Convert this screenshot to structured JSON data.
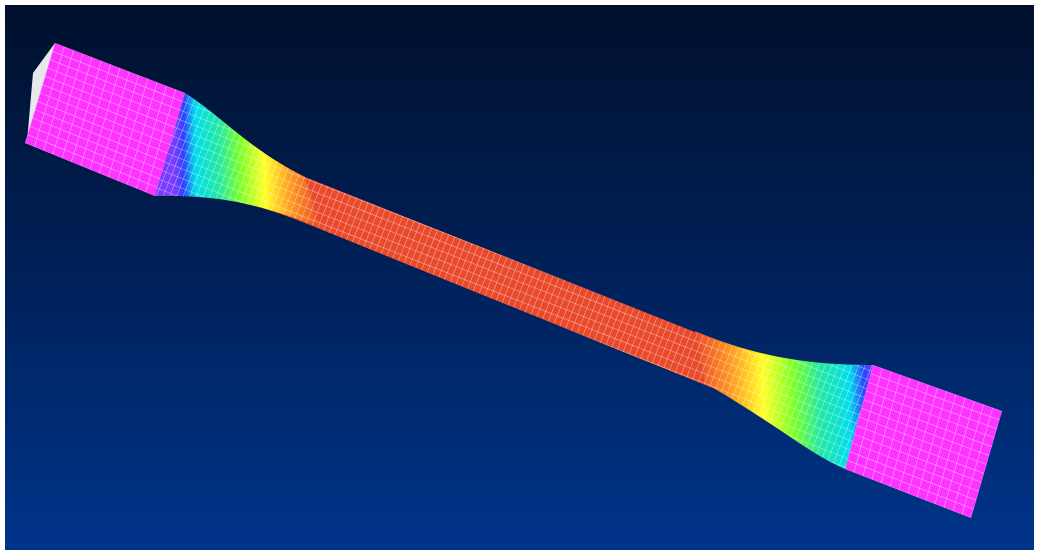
{
  "viewport": {
    "background_top_color": "#00102c",
    "background_mid_color": "#001f55",
    "background_bottom_color": "#00348a"
  },
  "specimen": {
    "mesh_line_color": "#ffffff",
    "colormap": [
      {
        "name": "grip",
        "color": "#ff33ff"
      },
      {
        "name": "violet",
        "color": "#7a3cff"
      },
      {
        "name": "blue",
        "color": "#2a44ff"
      },
      {
        "name": "cyan",
        "color": "#00ddee"
      },
      {
        "name": "teal",
        "color": "#22e8a6"
      },
      {
        "name": "green",
        "color": "#7cff2a"
      },
      {
        "name": "yellow",
        "color": "#ffff22"
      },
      {
        "name": "orange",
        "color": "#ff9922"
      },
      {
        "name": "red",
        "color": "#ea4a2a"
      }
    ],
    "gauge_color": "#e94a2c"
  }
}
